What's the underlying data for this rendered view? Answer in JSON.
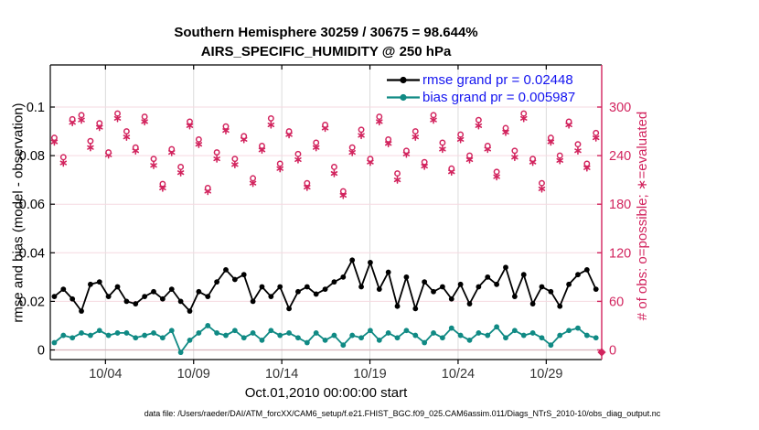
{
  "chart_data": {
    "type": "line",
    "title": "Southern Hemisphere 30259 / 30675 = 98.644%",
    "subtitle": "AIRS_SPECIFIC_HUMIDITY @ 250 hPa",
    "xlabel": "Oct.01,2010 00:00:00 start",
    "ylabel_left": "rmse and bias (model - observation)",
    "ylabel_right": "# of obs: o=possible; ∗=evaluated",
    "caption": "data file: /Users/raeder/DAI/ATM_forcXX/CAM6_setup/f.e21.FHIST_BGC.f09_025.CAM6assim.011/Diags_NTrS_2010-10/obs_diag_output.nc",
    "stats": {
      "rmse_grand_pr": 0.02448,
      "bias_grand_pr": 0.005987
    },
    "x_axis": {
      "tick_days": [
        3,
        8,
        13,
        18,
        23,
        28
      ],
      "tick_labels": [
        "10/04",
        "10/09",
        "10/14",
        "10/19",
        "10/24",
        "10/29"
      ],
      "start_label_day": 0
    },
    "y_left": {
      "ticks": [
        0,
        0.02,
        0.04,
        0.06,
        0.08,
        0.1
      ],
      "labels": [
        "0",
        "0.02",
        "0.04",
        "0.06",
        "0.08",
        "0.1"
      ],
      "range": [
        -0.004,
        0.1175
      ]
    },
    "y_right": {
      "ticks": [
        0,
        60,
        120,
        180,
        240,
        300
      ],
      "labels": [
        "0",
        "60",
        "120",
        "180",
        "240",
        "300"
      ],
      "range": [
        -12,
        333
      ]
    },
    "time": {
      "start_day": 0.1,
      "step_days": 0.512,
      "n_points": 61
    },
    "series": [
      {
        "name": "rmse",
        "legend": "rmse grand pr = 0.02448",
        "color": "#000000",
        "marker": "filled-circle",
        "values": [
          0.022,
          0.025,
          0.021,
          0.016,
          0.027,
          0.028,
          0.022,
          0.026,
          0.02,
          0.019,
          0.022,
          0.024,
          0.021,
          0.025,
          0.02,
          0.016,
          0.024,
          0.022,
          0.028,
          0.033,
          0.029,
          0.031,
          0.02,
          0.026,
          0.022,
          0.026,
          0.017,
          0.024,
          0.026,
          0.023,
          0.025,
          0.028,
          0.03,
          0.037,
          0.026,
          0.036,
          0.025,
          0.032,
          0.018,
          0.03,
          0.017,
          0.028,
          0.024,
          0.026,
          0.021,
          0.027,
          0.019,
          0.026,
          0.03,
          0.027,
          0.034,
          0.022,
          0.031,
          0.019,
          0.026,
          0.024,
          0.018,
          0.027,
          0.031,
          0.033,
          0.025
        ]
      },
      {
        "name": "bias",
        "legend": "bias grand pr = 0.005987",
        "color": "#108A84",
        "marker": "filled-circle",
        "values": [
          0.003,
          0.006,
          0.005,
          0.007,
          0.006,
          0.008,
          0.006,
          0.007,
          0.007,
          0.005,
          0.006,
          0.007,
          0.005,
          0.008,
          -0.001,
          0.004,
          0.007,
          0.01,
          0.007,
          0.006,
          0.008,
          0.005,
          0.007,
          0.004,
          0.008,
          0.006,
          0.007,
          0.005,
          0.003,
          0.007,
          0.004,
          0.006,
          0.002,
          0.006,
          0.005,
          0.008,
          0.004,
          0.007,
          0.005,
          0.008,
          0.006,
          0.003,
          0.007,
          0.005,
          0.009,
          0.006,
          0.004,
          0.007,
          0.006,
          0.0095,
          0.005,
          0.008,
          0.006,
          0.007,
          0.005,
          0.002,
          0.006,
          0.008,
          0.009,
          0.006,
          0.005
        ]
      }
    ],
    "obs_counts": {
      "color": "#D2245E",
      "possible_marker": "open-circle",
      "evaluated_marker": "asterisk",
      "possible": [
        262,
        238,
        285,
        290,
        258,
        280,
        244,
        292,
        270,
        250,
        288,
        236,
        205,
        248,
        226,
        282,
        260,
        200,
        244,
        276,
        236,
        264,
        212,
        252,
        286,
        230,
        270,
        242,
        206,
        256,
        278,
        226,
        196,
        250,
        272,
        236,
        288,
        260,
        218,
        246,
        270,
        232,
        290,
        256,
        224,
        266,
        240,
        284,
        252,
        220,
        274,
        246,
        292,
        236,
        206,
        262,
        240,
        282,
        254,
        230,
        268
      ],
      "evaluated": [
        257,
        231,
        281,
        284,
        250,
        275,
        241,
        286,
        263,
        246,
        282,
        228,
        200,
        244,
        219,
        277,
        254,
        196,
        236,
        271,
        229,
        260,
        206,
        247,
        278,
        224,
        266,
        235,
        201,
        250,
        274,
        218,
        191,
        244,
        265,
        232,
        282,
        255,
        210,
        242,
        263,
        227,
        284,
        248,
        220,
        260,
        235,
        277,
        248,
        214,
        269,
        238,
        286,
        232,
        199,
        257,
        234,
        278,
        246,
        225,
        262
      ],
      "end_marker": {
        "day": 31.1,
        "count": 0,
        "shape": "diamond"
      }
    },
    "colors": {
      "pink": "#D2245E",
      "teal": "#108A84",
      "black": "#000000",
      "legend_text": "#1414F0",
      "grid_horizontal": "#F6D9E1",
      "grid_vertical": "#DBDBDB",
      "zero_line": "#D8B3BD",
      "background": "#FFFFFF"
    },
    "legend_position": "top-right-inside",
    "grid": true
  }
}
